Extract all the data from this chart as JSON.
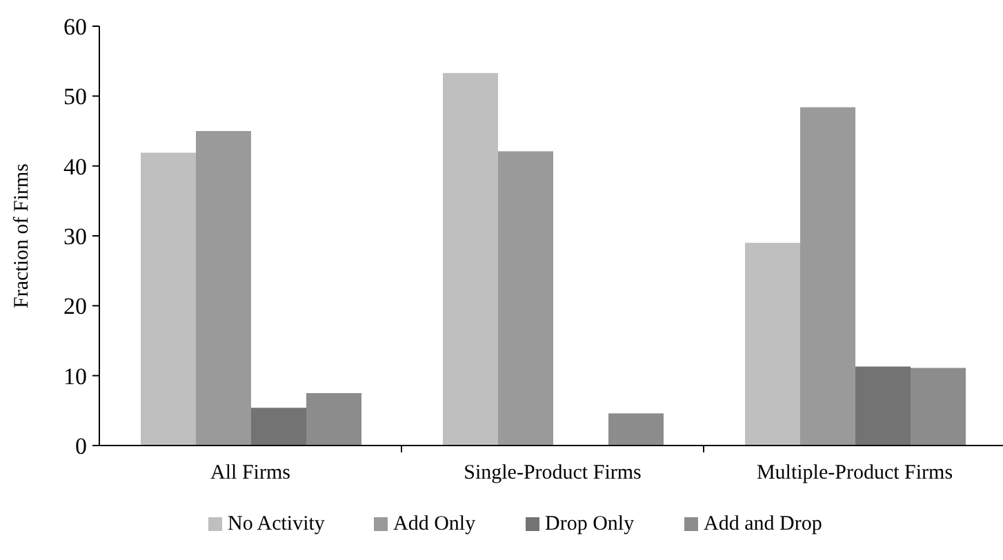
{
  "chart_data": {
    "type": "bar",
    "ylabel": "Fraction of Firms",
    "categories": [
      "All Firms",
      "Single-Product Firms",
      "Multiple-Product Firms"
    ],
    "series": [
      {
        "name": "No Activity",
        "color": "#bfbfbf",
        "values": [
          41.9,
          53.3,
          29.0
        ]
      },
      {
        "name": "Add Only",
        "color": "#9a9a9a",
        "values": [
          45.0,
          42.1,
          48.4
        ]
      },
      {
        "name": "Drop Only",
        "color": "#737373",
        "values": [
          5.4,
          0,
          11.3
        ]
      },
      {
        "name": "Add and Drop",
        "color": "#8c8c8c",
        "values": [
          7.5,
          4.6,
          11.1
        ]
      }
    ],
    "ylim": [
      0,
      60
    ],
    "yticks": [
      0,
      10,
      20,
      30,
      40,
      50,
      60
    ],
    "grid": false,
    "legend": "bottom"
  }
}
